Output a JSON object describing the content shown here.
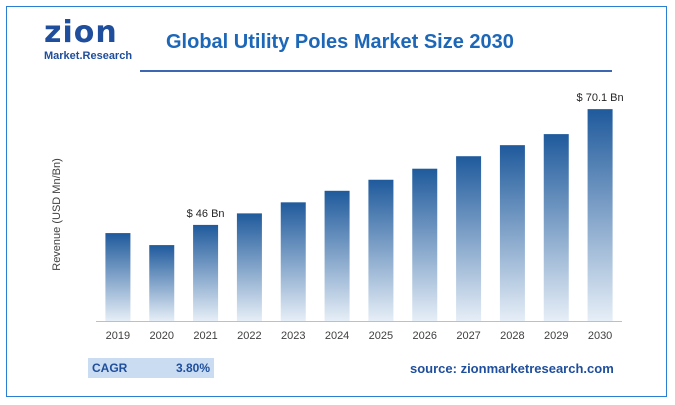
{
  "logo": {
    "main_text": "zion",
    "sub_text": "Market.Research",
    "color": "#1f4e9c",
    "accent": "#f39c12"
  },
  "header": {
    "title": "Global Utility Poles Market Size 2030"
  },
  "cagr": {
    "label": "CAGR",
    "value": "3.80%"
  },
  "source": "source: zionmarketresearch.com",
  "chart_data": {
    "type": "bar",
    "categories": [
      "2019",
      "2020",
      "2021",
      "2022",
      "2023",
      "2024",
      "2025",
      "2026",
      "2027",
      "2028",
      "2029",
      "2030"
    ],
    "values": [
      44.3,
      41.8,
      46.0,
      48.4,
      50.7,
      53.1,
      55.4,
      57.7,
      60.3,
      62.6,
      64.9,
      70.1
    ],
    "ylabel": "Revenue (USD Mn/Bn)",
    "ylim": [
      26,
      72
    ],
    "grid": false,
    "annotations": [
      {
        "category": "2021",
        "text": "$ 46 Bn"
      },
      {
        "category": "2030",
        "text": "$ 70.1 Bn"
      }
    ],
    "bar_color_top": "#1f5a9c",
    "bar_color_bottom": "#e6eef7"
  }
}
